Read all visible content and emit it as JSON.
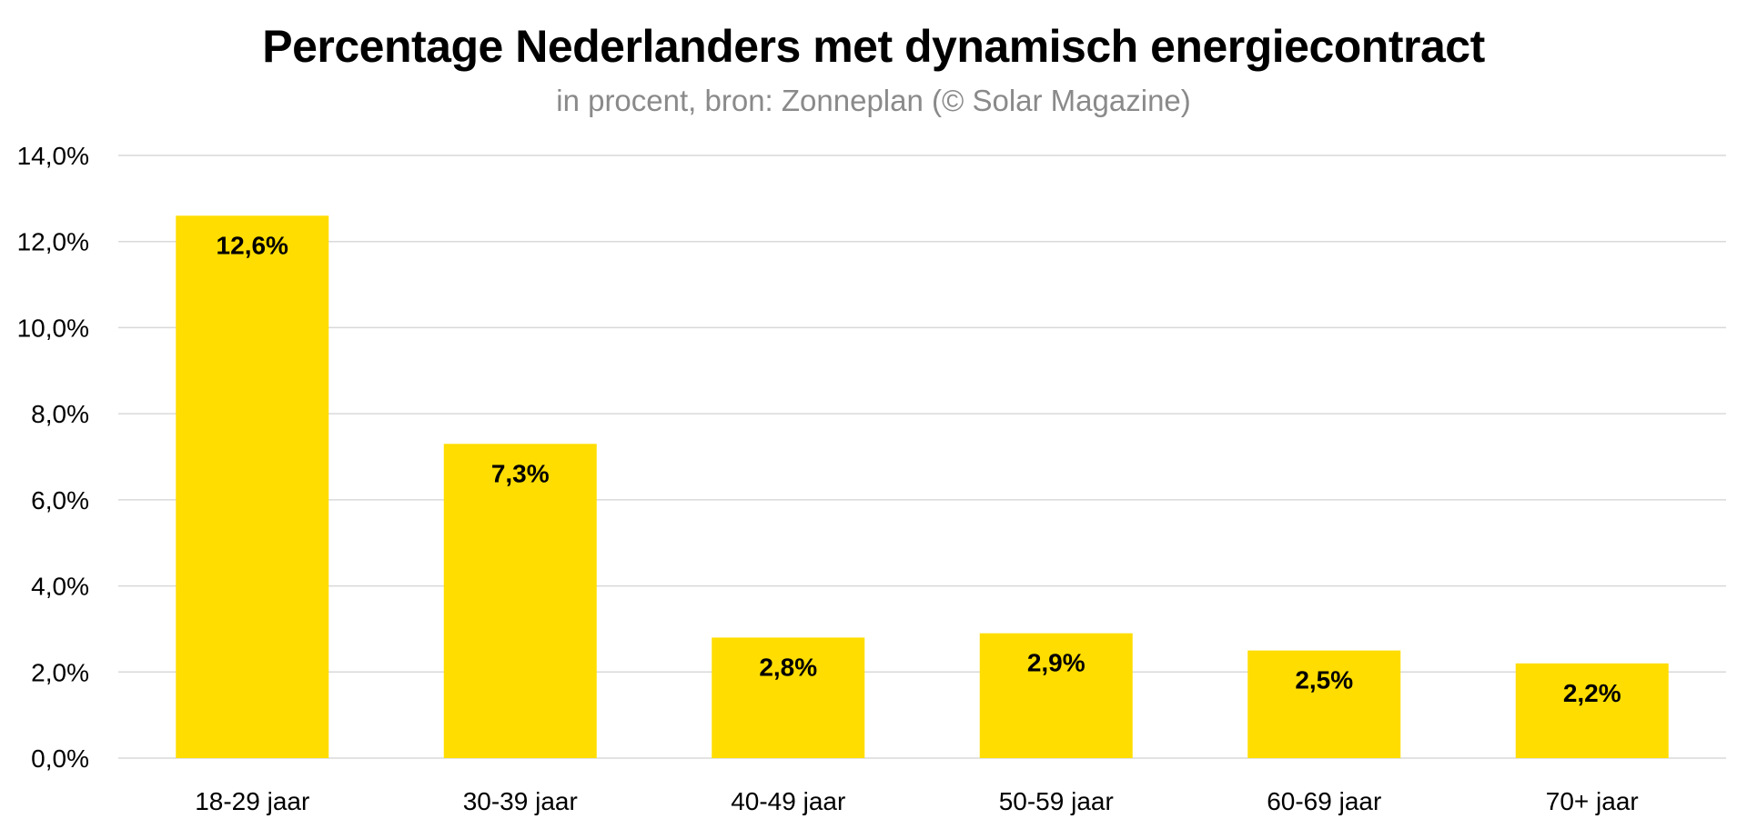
{
  "chart_data": {
    "type": "bar",
    "title": "Percentage Nederlanders met dynamisch energiecontract",
    "subtitle": "in procent, bron: Zonneplan (© Solar Magazine)",
    "categories": [
      "18-29 jaar",
      "30-39 jaar",
      "40-49 jaar",
      "50-59 jaar",
      "60-69 jaar",
      "70+ jaar"
    ],
    "values": [
      12.6,
      7.3,
      2.8,
      2.9,
      2.5,
      2.2
    ],
    "data_labels": [
      "12,6%",
      "7,3%",
      "2,8%",
      "2,9%",
      "2,5%",
      "2,2%"
    ],
    "y_ticks": [
      0,
      2,
      4,
      6,
      8,
      10,
      12,
      14
    ],
    "y_tick_labels": [
      "0,0%",
      "2,0%",
      "4,0%",
      "6,0%",
      "8,0%",
      "10,0%",
      "12,0%",
      "14,0%"
    ],
    "ylim": [
      0,
      14
    ],
    "xlabel": "",
    "ylabel": "",
    "grid": true,
    "legend": "none",
    "colors": {
      "bar": "#FFDD00",
      "grid": "#d9d9d9",
      "subtitle": "#8a8a8a"
    }
  }
}
